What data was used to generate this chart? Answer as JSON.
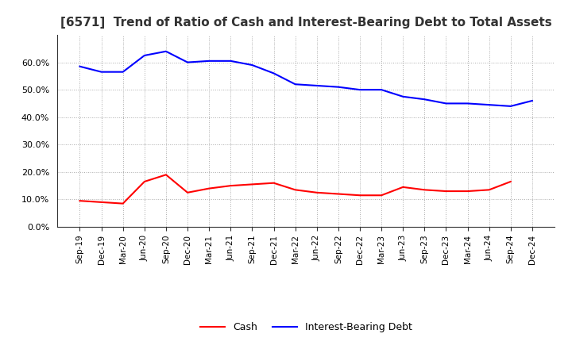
{
  "title": "[6571]  Trend of Ratio of Cash and Interest-Bearing Debt to Total Assets",
  "x_labels": [
    "Sep-19",
    "Dec-19",
    "Mar-20",
    "Jun-20",
    "Sep-20",
    "Dec-20",
    "Mar-21",
    "Jun-21",
    "Sep-21",
    "Dec-21",
    "Mar-22",
    "Jun-22",
    "Sep-22",
    "Dec-22",
    "Mar-23",
    "Jun-23",
    "Sep-23",
    "Dec-23",
    "Mar-24",
    "Jun-24",
    "Sep-24",
    "Dec-24"
  ],
  "cash": [
    9.5,
    9.0,
    8.5,
    16.5,
    19.0,
    12.5,
    14.0,
    15.0,
    15.5,
    16.0,
    13.5,
    12.5,
    12.0,
    11.5,
    11.5,
    14.5,
    13.5,
    13.0,
    13.0,
    13.5,
    16.5,
    null
  ],
  "interest_bearing_debt": [
    58.5,
    56.5,
    56.5,
    62.5,
    64.0,
    60.0,
    60.5,
    60.5,
    59.0,
    56.0,
    52.0,
    51.5,
    51.0,
    50.0,
    50.0,
    47.5,
    46.5,
    45.0,
    45.0,
    44.5,
    44.0,
    46.0
  ],
  "cash_color": "#ff0000",
  "debt_color": "#0000ff",
  "background_color": "#ffffff",
  "grid_color": "#aaaaaa",
  "ylim": [
    0,
    70
  ],
  "yticks": [
    0,
    10,
    20,
    30,
    40,
    50,
    60
  ],
  "title_fontsize": 11,
  "legend_cash": "Cash",
  "legend_debt": "Interest-Bearing Debt"
}
